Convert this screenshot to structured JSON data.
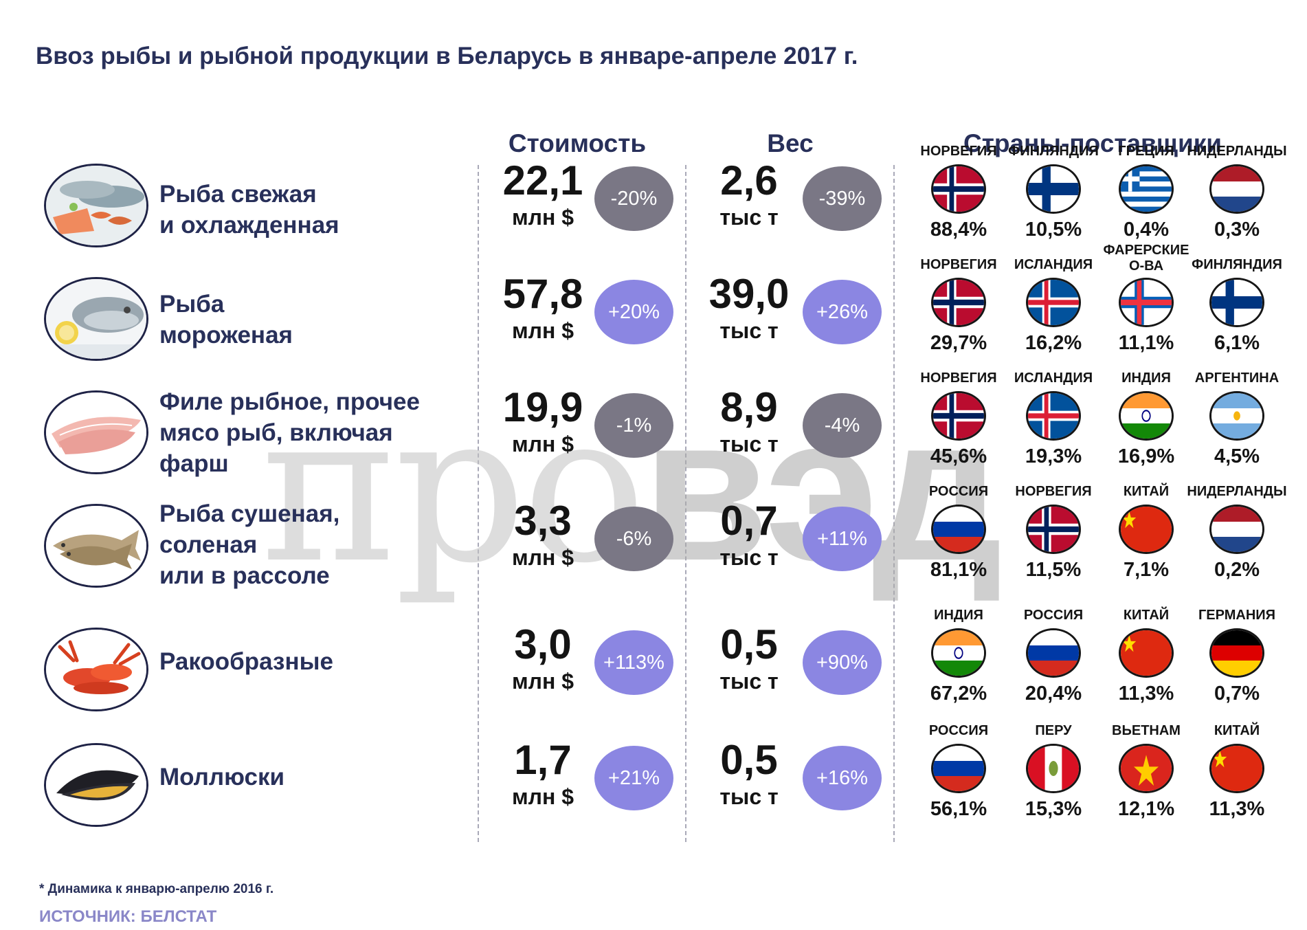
{
  "title": "Ввоз рыбы и рыбной продукции в Беларусь в январе-апреле 2017 г.",
  "headers": {
    "value": "Стоимость",
    "weight": "Вес",
    "countries": "Страны-поставщики"
  },
  "watermark": {
    "light": "про",
    "bold": "вэд"
  },
  "footnote": "* Динамика к январю-апрелю 2016 г.",
  "source": "ИСТОЧНИК: БЕЛСТАТ",
  "colors": {
    "negative_badge": "#7a7785",
    "positive_badge": "#8b86e2",
    "heading": "#28305a",
    "source": "#8a87c8"
  },
  "chart_data": {
    "type": "table",
    "rows": [
      {
        "icon": "fresh-fish-photo",
        "category_lines": [
          "Рыба свежая",
          "и охлажденная"
        ],
        "value": "22,1",
        "value_unit": "млн $",
        "value_change": "-20%",
        "weight": "2,6",
        "weight_unit": "тыс т",
        "weight_change": "-39%",
        "countries": [
          {
            "name_lines": [
              "НОРВЕГИЯ"
            ],
            "share": "88,4%",
            "flag": "norway-flag-icon"
          },
          {
            "name_lines": [
              "ФИНЛЯНДИЯ"
            ],
            "share": "10,5%",
            "flag": "finland-flag-icon"
          },
          {
            "name_lines": [
              "ГРЕЦИЯ"
            ],
            "share": "0,4%",
            "flag": "greece-flag-icon"
          },
          {
            "name_lines": [
              "НИДЕРЛАНДЫ"
            ],
            "share": "0,3%",
            "flag": "netherlands-flag-icon"
          }
        ]
      },
      {
        "icon": "frozen-fish-photo",
        "category_lines": [
          "Рыба",
          "мороженая"
        ],
        "value": "57,8",
        "value_unit": "млн $",
        "value_change": "+20%",
        "weight": "39,0",
        "weight_unit": "тыс т",
        "weight_change": "+26%",
        "countries": [
          {
            "name_lines": [
              "НОРВЕГИЯ"
            ],
            "share": "29,7%",
            "flag": "norway-flag-icon"
          },
          {
            "name_lines": [
              "ИСЛАНДИЯ"
            ],
            "share": "16,2%",
            "flag": "iceland-flag-icon"
          },
          {
            "name_lines": [
              "ФАРЕРСКИЕ",
              "О-ВА"
            ],
            "share": "11,1%",
            "flag": "faroe-flag-icon"
          },
          {
            "name_lines": [
              "ФИНЛЯНДИЯ"
            ],
            "share": "6,1%",
            "flag": "finland-flag-icon"
          }
        ]
      },
      {
        "icon": "fish-fillet-photo",
        "category_lines": [
          "Филе рыбное, прочее",
          "мясо рыб, включая",
          "фарш"
        ],
        "value": "19,9",
        "value_unit": "млн $",
        "value_change": "-1%",
        "weight": "8,9",
        "weight_unit": "тыс т",
        "weight_change": "-4%",
        "countries": [
          {
            "name_lines": [
              "НОРВЕГИЯ"
            ],
            "share": "45,6%",
            "flag": "norway-flag-icon"
          },
          {
            "name_lines": [
              "ИСЛАНДИЯ"
            ],
            "share": "19,3%",
            "flag": "iceland-flag-icon"
          },
          {
            "name_lines": [
              "ИНДИЯ"
            ],
            "share": "16,9%",
            "flag": "india-flag-icon"
          },
          {
            "name_lines": [
              "АРГЕНТИНА"
            ],
            "share": "4,5%",
            "flag": "argentina-flag-icon"
          }
        ]
      },
      {
        "icon": "dried-fish-photo",
        "category_lines": [
          "Рыба сушеная,",
          "соленая",
          "или в рассоле"
        ],
        "value": "3,3",
        "value_unit": "млн $",
        "value_change": "-6%",
        "weight": "0,7",
        "weight_unit": "тыс т",
        "weight_change": "+11%",
        "countries": [
          {
            "name_lines": [
              "РОССИЯ"
            ],
            "share": "81,1%",
            "flag": "russia-flag-icon"
          },
          {
            "name_lines": [
              "НОРВЕГИЯ"
            ],
            "share": "11,5%",
            "flag": "norway-flag-icon"
          },
          {
            "name_lines": [
              "КИТАЙ"
            ],
            "share": "7,1%",
            "flag": "china-flag-icon"
          },
          {
            "name_lines": [
              "НИДЕРЛАНДЫ"
            ],
            "share": "0,2%",
            "flag": "netherlands-flag-icon"
          }
        ]
      },
      {
        "icon": "crayfish-photo",
        "category_lines": [
          "Ракообразные"
        ],
        "value": "3,0",
        "value_unit": "млн $",
        "value_change": "+113%",
        "weight": "0,5",
        "weight_unit": "тыс т",
        "weight_change": "+90%",
        "countries": [
          {
            "name_lines": [
              "ИНДИЯ"
            ],
            "share": "67,2%",
            "flag": "india-flag-icon"
          },
          {
            "name_lines": [
              "РОССИЯ"
            ],
            "share": "20,4%",
            "flag": "russia-flag-icon"
          },
          {
            "name_lines": [
              "КИТАЙ"
            ],
            "share": "11,3%",
            "flag": "china-flag-icon"
          },
          {
            "name_lines": [
              "ГЕРМАНИЯ"
            ],
            "share": "0,7%",
            "flag": "germany-flag-icon"
          }
        ]
      },
      {
        "icon": "mussel-photo",
        "category_lines": [
          "Моллюски"
        ],
        "value": "1,7",
        "value_unit": "млн $",
        "value_change": "+21%",
        "weight": "0,5",
        "weight_unit": "тыс т",
        "weight_change": "+16%",
        "countries": [
          {
            "name_lines": [
              "РОССИЯ"
            ],
            "share": "56,1%",
            "flag": "russia-flag-icon"
          },
          {
            "name_lines": [
              "ПЕРУ"
            ],
            "share": "15,3%",
            "flag": "peru-flag-icon"
          },
          {
            "name_lines": [
              "ВЬЕТНАМ"
            ],
            "share": "12,1%",
            "flag": "vietnam-flag-icon"
          },
          {
            "name_lines": [
              "КИТАЙ"
            ],
            "share": "11,3%",
            "flag": "china-flag-icon"
          }
        ]
      }
    ]
  }
}
